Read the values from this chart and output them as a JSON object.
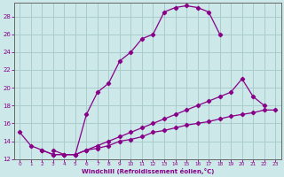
{
  "xlabel": "Windchill (Refroidissement éolien,°C)",
  "background_color": "#cce8e8",
  "grid_color": "#aacccc",
  "line_color": "#880088",
  "xlim": [
    -0.5,
    23.5
  ],
  "ylim": [
    12,
    29.5
  ],
  "yticks": [
    12,
    14,
    16,
    18,
    20,
    22,
    24,
    26,
    28
  ],
  "xticks": [
    0,
    1,
    2,
    3,
    4,
    5,
    6,
    7,
    8,
    9,
    10,
    11,
    12,
    13,
    14,
    15,
    16,
    17,
    18,
    19,
    20,
    21,
    22,
    23
  ],
  "curve1_x": [
    0,
    1,
    2,
    3,
    4,
    5,
    6,
    7,
    8,
    9,
    10,
    11,
    12,
    13,
    14,
    15,
    16,
    17,
    18
  ],
  "curve1_y": [
    15.0,
    13.5,
    13.0,
    12.5,
    12.5,
    12.5,
    17.0,
    19.5,
    20.5,
    23.0,
    24.0,
    25.5,
    26.0,
    28.5,
    29.0,
    29.2,
    29.0,
    28.5,
    26.0
  ],
  "curve2_x": [
    3,
    4,
    5,
    6,
    7,
    8,
    9,
    10,
    11,
    12,
    13,
    14,
    15,
    16,
    17,
    18,
    19,
    20,
    21,
    22
  ],
  "curve2_y": [
    13.0,
    12.5,
    12.5,
    13.0,
    13.5,
    14.0,
    14.5,
    15.0,
    15.5,
    16.0,
    16.5,
    17.0,
    17.5,
    18.0,
    18.5,
    19.0,
    19.5,
    21.0,
    19.0,
    18.0
  ],
  "curve3_x": [
    2,
    3,
    4,
    5,
    6,
    7,
    8,
    9,
    10,
    11,
    12,
    13,
    14,
    15,
    16,
    17,
    18,
    19,
    20,
    21,
    22,
    23
  ],
  "curve3_y": [
    13.0,
    12.5,
    12.5,
    12.5,
    13.0,
    13.2,
    13.5,
    14.0,
    14.2,
    14.5,
    15.0,
    15.2,
    15.5,
    15.8,
    16.0,
    16.2,
    16.5,
    16.8,
    17.0,
    17.2,
    17.5,
    17.5
  ]
}
